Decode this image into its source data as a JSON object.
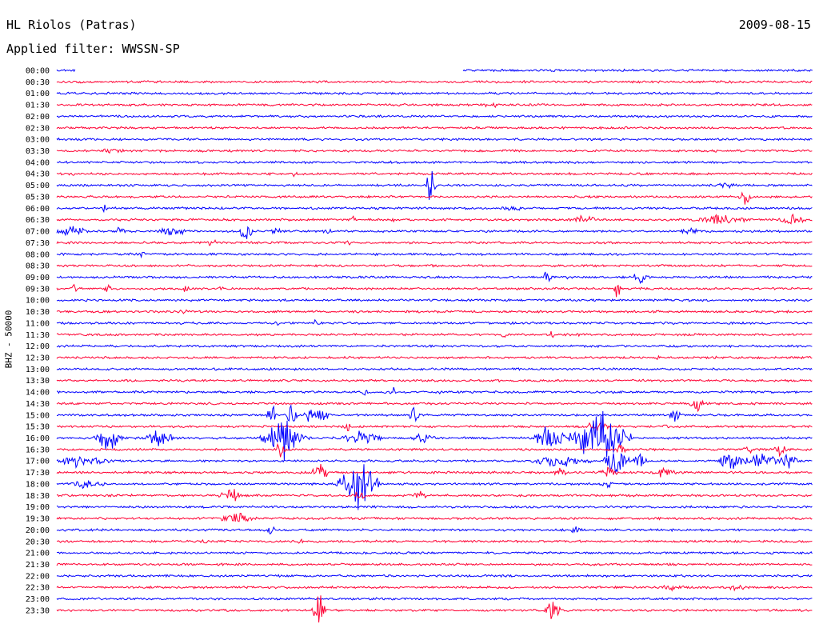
{
  "header": {
    "station": "HL Riolos (Patras)",
    "date": "2009-08-15",
    "filter_label": "Applied filter:",
    "filter_value": "WWSSN-SP"
  },
  "channel_label": "BHZ - 50000",
  "colors": {
    "blue": "#0000ff",
    "red": "#ff0033"
  },
  "chart_data": {
    "type": "line",
    "rows": [
      {
        "label": "00:00",
        "color": "blue"
      },
      {
        "label": "00:30",
        "color": "red"
      },
      {
        "label": "01:00",
        "color": "blue"
      },
      {
        "label": "01:30",
        "color": "red"
      },
      {
        "label": "02:00",
        "color": "blue"
      },
      {
        "label": "02:30",
        "color": "red"
      },
      {
        "label": "03:00",
        "color": "blue"
      },
      {
        "label": "03:30",
        "color": "red"
      },
      {
        "label": "04:00",
        "color": "blue"
      },
      {
        "label": "04:30",
        "color": "red"
      },
      {
        "label": "05:00",
        "color": "blue"
      },
      {
        "label": "05:30",
        "color": "red"
      },
      {
        "label": "06:00",
        "color": "blue"
      },
      {
        "label": "06:30",
        "color": "red"
      },
      {
        "label": "07:00",
        "color": "blue"
      },
      {
        "label": "07:30",
        "color": "red"
      },
      {
        "label": "08:00",
        "color": "blue"
      },
      {
        "label": "08:30",
        "color": "red"
      },
      {
        "label": "09:00",
        "color": "blue"
      },
      {
        "label": "09:30",
        "color": "red"
      },
      {
        "label": "10:00",
        "color": "blue"
      },
      {
        "label": "10:30",
        "color": "red"
      },
      {
        "label": "11:00",
        "color": "blue"
      },
      {
        "label": "11:30",
        "color": "red"
      },
      {
        "label": "12:00",
        "color": "blue"
      },
      {
        "label": "12:30",
        "color": "red"
      },
      {
        "label": "13:00",
        "color": "blue"
      },
      {
        "label": "13:30",
        "color": "red"
      },
      {
        "label": "14:00",
        "color": "blue"
      },
      {
        "label": "14:30",
        "color": "red"
      },
      {
        "label": "15:00",
        "color": "blue"
      },
      {
        "label": "15:30",
        "color": "red"
      },
      {
        "label": "16:00",
        "color": "blue"
      },
      {
        "label": "16:30",
        "color": "red"
      },
      {
        "label": "17:00",
        "color": "blue"
      },
      {
        "label": "17:30",
        "color": "red"
      },
      {
        "label": "18:00",
        "color": "blue"
      },
      {
        "label": "18:30",
        "color": "red"
      },
      {
        "label": "19:00",
        "color": "blue"
      },
      {
        "label": "19:30",
        "color": "red"
      },
      {
        "label": "20:00",
        "color": "blue"
      },
      {
        "label": "20:30",
        "color": "red"
      },
      {
        "label": "21:00",
        "color": "blue"
      },
      {
        "label": "21:30",
        "color": "red"
      },
      {
        "label": "22:00",
        "color": "blue"
      },
      {
        "label": "22:30",
        "color": "red"
      },
      {
        "label": "23:00",
        "color": "blue"
      },
      {
        "label": "23:30",
        "color": "red"
      }
    ]
  }
}
